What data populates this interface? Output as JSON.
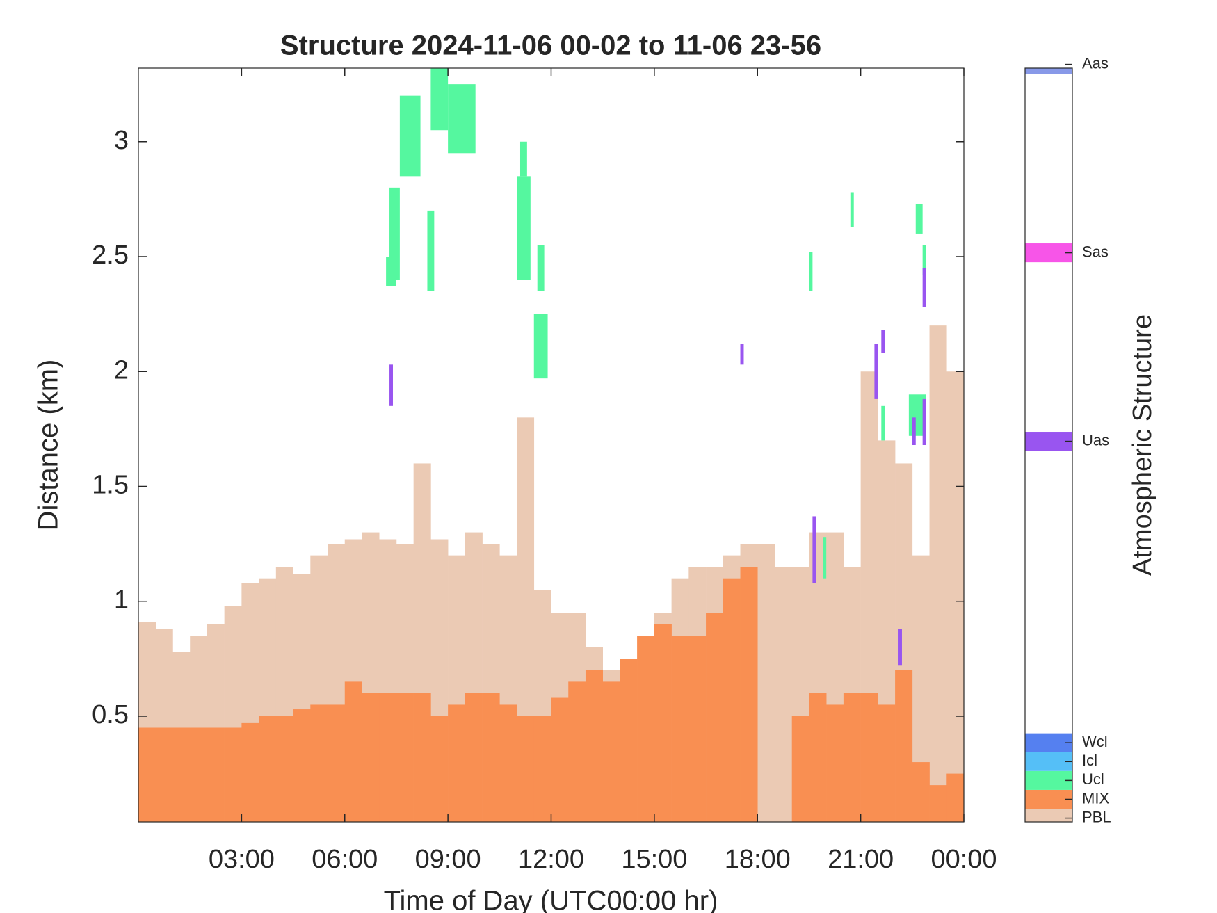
{
  "chart_data": {
    "type": "structure",
    "title": "Structure 2024-11-06 00-02 to 11-06 23-56",
    "x_label": "Time of Day (UTC00:00 hr)",
    "y_label": "Distance (km)",
    "colorbar_label": "Atmospheric Structure",
    "xlim": [
      0,
      24
    ],
    "xticks": [
      {
        "value": 3,
        "label": "03:00"
      },
      {
        "value": 6,
        "label": "06:00"
      },
      {
        "value": 9,
        "label": "09:00"
      },
      {
        "value": 12,
        "label": "12:00"
      },
      {
        "value": 15,
        "label": "15:00"
      },
      {
        "value": 18,
        "label": "18:00"
      },
      {
        "value": 21,
        "label": "21:00"
      },
      {
        "value": 24,
        "label": "00:00"
      }
    ],
    "ylim": [
      0.04,
      3.32
    ],
    "yticks": [
      0.5,
      1,
      1.5,
      2,
      2.5,
      3
    ],
    "clim": [
      -0.2,
      39.8
    ],
    "x": [
      0.25,
      0.75,
      1.25,
      1.75,
      2.25,
      2.75,
      3.25,
      3.75,
      4.25,
      4.75,
      5.25,
      5.75,
      6.25,
      6.75,
      7.25,
      7.75,
      8.25,
      8.75,
      9.25,
      9.75,
      10.25,
      10.75,
      11.25,
      11.75,
      12.25,
      12.75,
      13.25,
      13.75,
      14.25,
      14.75,
      15.25,
      15.75,
      16.25,
      16.75,
      17.25,
      17.75,
      18.25,
      18.75,
      19.25,
      19.75,
      20.25,
      20.75,
      21.25,
      21.75,
      22.25,
      22.75,
      23.25,
      23.75
    ],
    "series": [
      {
        "name": "PBL",
        "color": "#ebcab4",
        "cbar_value": 0,
        "values": [
          0.91,
          0.88,
          0.78,
          0.85,
          0.9,
          0.98,
          1.08,
          1.1,
          1.15,
          1.12,
          1.2,
          1.25,
          1.27,
          1.3,
          1.27,
          1.25,
          1.6,
          1.27,
          1.2,
          1.3,
          1.25,
          1.2,
          1.8,
          1.05,
          0.95,
          0.95,
          0.8,
          0.7,
          0.72,
          0.85,
          0.95,
          1.1,
          1.15,
          1.15,
          1.2,
          1.25,
          1.25,
          1.15,
          1.15,
          1.3,
          1.3,
          1.15,
          2.0,
          1.7,
          1.6,
          1.2,
          2.2,
          2.0
        ]
      },
      {
        "name": "MIX",
        "color": "#f98f52",
        "cbar_value": 1,
        "values": [
          0.45,
          0.45,
          0.45,
          0.45,
          0.45,
          0.45,
          0.47,
          0.5,
          0.5,
          0.53,
          0.55,
          0.55,
          0.65,
          0.6,
          0.6,
          0.6,
          0.6,
          0.5,
          0.55,
          0.6,
          0.6,
          0.55,
          0.5,
          0.5,
          0.58,
          0.65,
          0.7,
          0.65,
          0.75,
          0.85,
          0.9,
          0.85,
          0.85,
          0.95,
          1.1,
          1.15,
          null,
          null,
          0.5,
          0.6,
          0.55,
          0.6,
          0.6,
          0.55,
          0.7,
          0.3,
          0.2,
          0.25
        ]
      },
      {
        "name": "Ucl",
        "color": "#55f79f",
        "cbar_value": 2,
        "rects": [
          [
            7.2,
            7.5,
            2.37,
            2.5
          ],
          [
            7.3,
            7.6,
            2.4,
            2.8
          ],
          [
            7.6,
            8.2,
            2.85,
            3.2
          ],
          [
            8.4,
            8.6,
            2.35,
            2.7
          ],
          [
            8.5,
            9.0,
            3.05,
            3.32
          ],
          [
            9.0,
            9.8,
            2.95,
            3.25
          ],
          [
            11.0,
            11.4,
            2.4,
            2.85
          ],
          [
            11.1,
            11.3,
            2.85,
            3.0
          ],
          [
            11.6,
            11.8,
            2.35,
            2.55
          ],
          [
            11.5,
            11.9,
            1.97,
            2.25
          ],
          [
            19.5,
            19.6,
            2.35,
            2.52
          ],
          [
            20.7,
            20.8,
            2.63,
            2.78
          ],
          [
            21.6,
            21.7,
            1.7,
            1.85
          ],
          [
            22.6,
            22.8,
            2.6,
            2.73
          ],
          [
            22.4,
            22.9,
            1.72,
            1.9
          ],
          [
            22.8,
            22.9,
            2.42,
            2.55
          ],
          [
            19.9,
            20.0,
            1.1,
            1.28
          ]
        ]
      },
      {
        "name": "Icl",
        "color": "#55bff7",
        "cbar_value": 3
      },
      {
        "name": "Wcl",
        "color": "#5580f0",
        "cbar_value": 4
      },
      {
        "name": "Uas",
        "color": "#9955f0",
        "cbar_value": 20,
        "rects": [
          [
            7.3,
            7.4,
            1.85,
            2.03
          ],
          [
            17.5,
            17.6,
            2.03,
            2.12
          ],
          [
            19.6,
            19.7,
            1.08,
            1.37
          ],
          [
            21.4,
            21.5,
            1.88,
            2.12
          ],
          [
            21.6,
            21.7,
            2.08,
            2.18
          ],
          [
            22.1,
            22.2,
            0.72,
            0.88
          ],
          [
            22.5,
            22.6,
            1.68,
            1.8
          ],
          [
            22.8,
            22.9,
            2.28,
            2.45
          ],
          [
            22.8,
            22.9,
            1.68,
            1.88
          ]
        ]
      },
      {
        "name": "Sas",
        "color": "#f755e8",
        "cbar_value": 30
      },
      {
        "name": "Aas",
        "color": "#8899e8",
        "cbar_value": 40
      }
    ]
  }
}
